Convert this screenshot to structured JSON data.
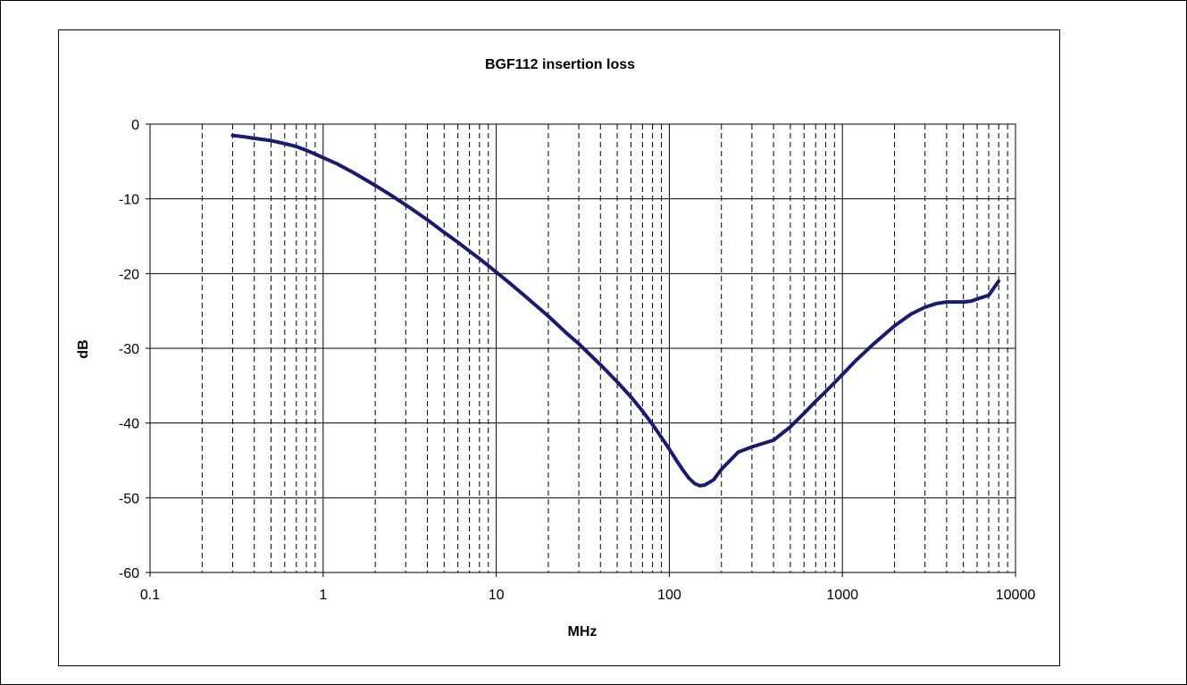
{
  "chart_data": {
    "type": "line",
    "title": "BGF112 insertion loss",
    "xlabel": "MHz",
    "ylabel": "dB",
    "x_scale": "log",
    "xlim": [
      0.1,
      10000
    ],
    "ylim": [
      -60,
      0
    ],
    "x_ticks": [
      "0.1",
      "1",
      "10",
      "100",
      "1000",
      "10000"
    ],
    "y_ticks": [
      "0",
      "-10",
      "-20",
      "-30",
      "-40",
      "-50",
      "-60"
    ],
    "grid": {
      "major": "solid",
      "minor": "dashed",
      "minor_axis": "x"
    },
    "legend": "none",
    "line_color": "#1a1a6e",
    "series": [
      {
        "x": [
          0.3,
          0.35,
          0.4,
          0.5,
          0.6,
          0.7,
          0.8,
          0.9,
          1,
          1.2,
          1.5,
          2,
          2.5,
          3,
          4,
          5,
          6,
          7,
          8,
          10,
          12,
          15,
          20,
          25,
          30,
          40,
          50,
          60,
          70,
          80,
          90,
          100,
          110,
          120,
          130,
          140,
          150,
          160,
          180,
          200,
          250,
          300,
          400,
          500,
          600,
          700,
          800,
          900,
          1000,
          1200,
          1500,
          2000,
          2500,
          3000,
          3500,
          4000,
          4500,
          5000,
          5500,
          6000,
          7000,
          8000
        ],
        "y": [
          -1.5,
          -1.7,
          -1.9,
          -2.2,
          -2.6,
          -3.0,
          -3.5,
          -4.0,
          -4.5,
          -5.3,
          -6.5,
          -8.2,
          -9.6,
          -10.8,
          -12.8,
          -14.5,
          -15.8,
          -17.0,
          -18.0,
          -19.8,
          -21.3,
          -23.2,
          -25.7,
          -27.8,
          -29.4,
          -32.2,
          -34.5,
          -36.5,
          -38.4,
          -40.2,
          -41.9,
          -43.5,
          -45.0,
          -46.3,
          -47.4,
          -48.1,
          -48.4,
          -48.3,
          -47.6,
          -46.2,
          -43.9,
          -43.2,
          -42.3,
          -40.5,
          -38.7,
          -37.1,
          -35.8,
          -34.6,
          -33.5,
          -31.6,
          -29.5,
          -27.0,
          -25.4,
          -24.5,
          -24.0,
          -23.8,
          -23.8,
          -23.8,
          -23.7,
          -23.4,
          -22.9,
          -21.0
        ]
      }
    ]
  }
}
